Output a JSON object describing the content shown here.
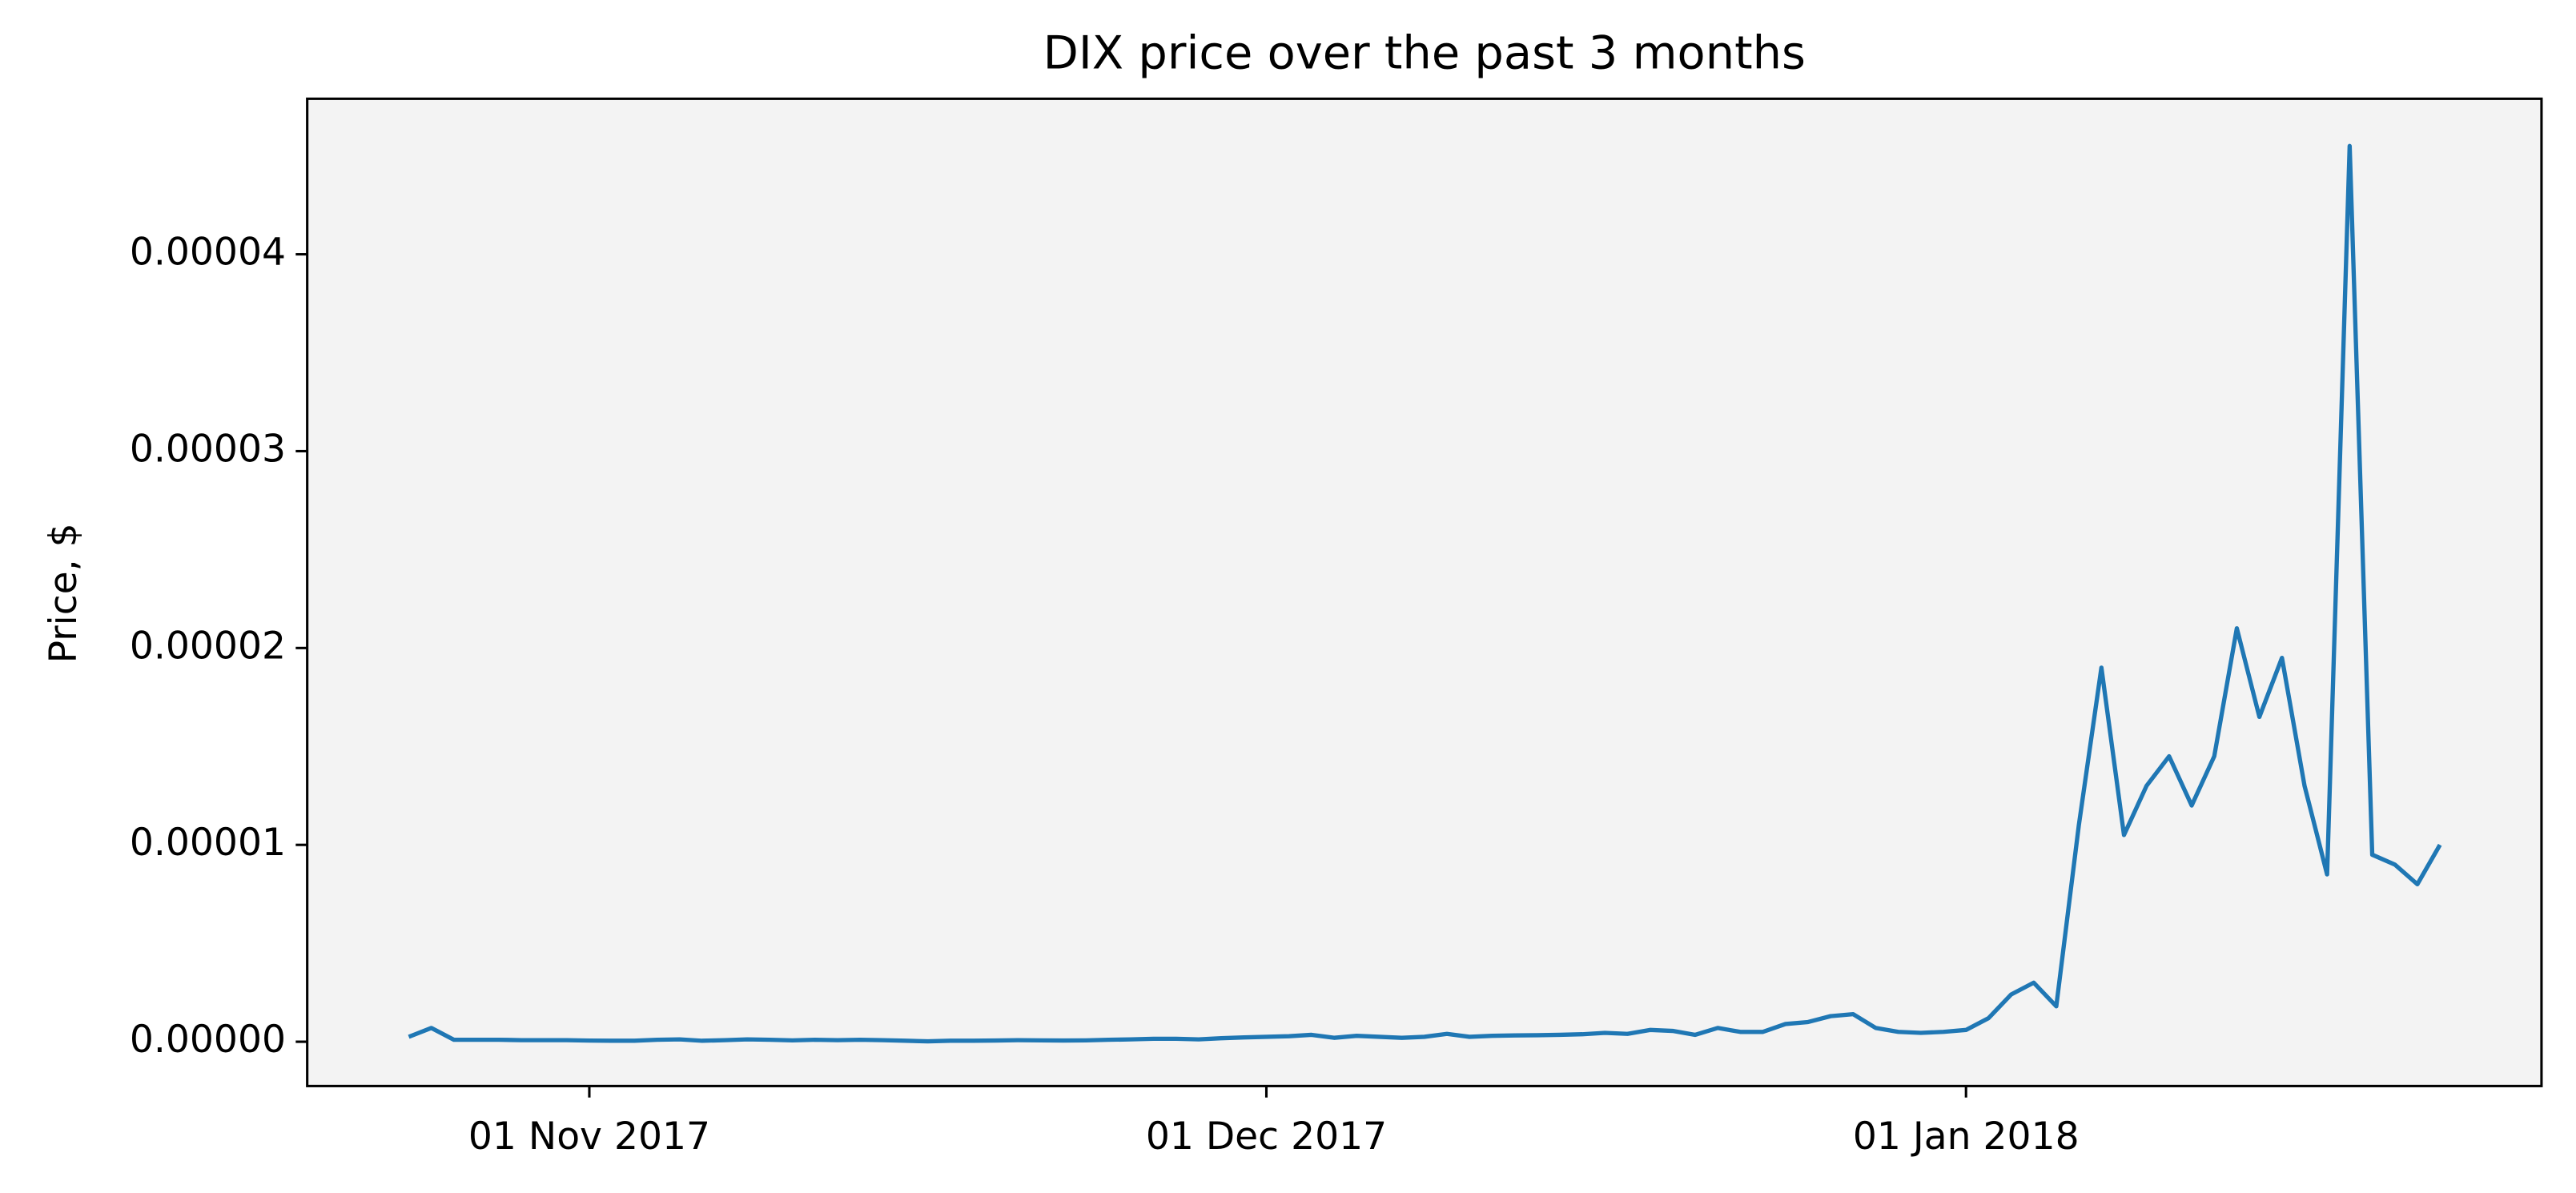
{
  "chart_data": {
    "type": "line",
    "title": "DIX price over the past 3 months",
    "ylabel": "Price, $",
    "x": [
      "2017-10-24",
      "2017-10-25",
      "2017-10-26",
      "2017-10-27",
      "2017-10-28",
      "2017-10-29",
      "2017-10-30",
      "2017-10-31",
      "2017-11-01",
      "2017-11-02",
      "2017-11-03",
      "2017-11-04",
      "2017-11-05",
      "2017-11-06",
      "2017-11-07",
      "2017-11-08",
      "2017-11-09",
      "2017-11-10",
      "2017-11-11",
      "2017-11-12",
      "2017-11-13",
      "2017-11-14",
      "2017-11-15",
      "2017-11-16",
      "2017-11-17",
      "2017-11-18",
      "2017-11-19",
      "2017-11-20",
      "2017-11-21",
      "2017-11-22",
      "2017-11-23",
      "2017-11-24",
      "2017-11-25",
      "2017-11-26",
      "2017-11-27",
      "2017-11-28",
      "2017-11-29",
      "2017-11-30",
      "2017-12-01",
      "2017-12-02",
      "2017-12-03",
      "2017-12-04",
      "2017-12-05",
      "2017-12-06",
      "2017-12-07",
      "2017-12-08",
      "2017-12-09",
      "2017-12-10",
      "2017-12-11",
      "2017-12-12",
      "2017-12-13",
      "2017-12-14",
      "2017-12-15",
      "2017-12-16",
      "2017-12-17",
      "2017-12-18",
      "2017-12-19",
      "2017-12-20",
      "2017-12-21",
      "2017-12-22",
      "2017-12-23",
      "2017-12-24",
      "2017-12-25",
      "2017-12-26",
      "2017-12-27",
      "2017-12-28",
      "2017-12-29",
      "2017-12-30",
      "2017-12-31",
      "2018-01-01",
      "2018-01-02",
      "2018-01-03",
      "2018-01-04",
      "2018-01-05",
      "2018-01-06",
      "2018-01-07",
      "2018-01-08",
      "2018-01-09",
      "2018-01-10",
      "2018-01-11",
      "2018-01-12",
      "2018-01-13",
      "2018-01-14",
      "2018-01-15",
      "2018-01-16",
      "2018-01-17",
      "2018-01-18",
      "2018-01-19",
      "2018-01-20",
      "2018-01-21",
      "2018-01-22"
    ],
    "series": [
      {
        "name": "DIX",
        "color": "#1f77b4",
        "values": [
          2.5e-07,
          7e-07,
          1e-07,
          1e-07,
          1e-07,
          8e-08,
          8e-08,
          8e-08,
          6e-08,
          5e-08,
          5e-08,
          1e-07,
          1.2e-07,
          5e-08,
          8e-08,
          1.2e-07,
          1e-07,
          7e-08,
          1e-07,
          8e-08,
          1e-07,
          8e-08,
          5e-08,
          2e-08,
          5e-08,
          5e-08,
          6e-08,
          8e-08,
          7e-08,
          6e-08,
          7e-08,
          1e-07,
          1.2e-07,
          1.5e-07,
          1.5e-07,
          1.2e-07,
          1.8e-07,
          2.2e-07,
          2.5e-07,
          2.8e-07,
          3.5e-07,
          2e-07,
          3e-07,
          2.5e-07,
          2e-07,
          2.5e-07,
          4e-07,
          2.5e-07,
          3e-07,
          3.2e-07,
          3.3e-07,
          3.5e-07,
          3.8e-07,
          4.5e-07,
          4e-07,
          6e-07,
          5.5e-07,
          3.5e-07,
          7e-07,
          5e-07,
          5e-07,
          9e-07,
          1e-06,
          1.3e-06,
          1.4e-06,
          7e-07,
          5e-07,
          4.5e-07,
          5e-07,
          6e-07,
          1.2e-06,
          2.4e-06,
          3e-06,
          1.8e-06,
          1.1e-05,
          1.9e-05,
          1.05e-05,
          1.3e-05,
          1.45e-05,
          1.2e-05,
          1.45e-05,
          2.1e-05,
          1.65e-05,
          1.95e-05,
          1.3e-05,
          8.5e-06,
          4.55e-05,
          9.5e-06,
          9e-06,
          8e-06,
          1e-05
        ]
      }
    ],
    "xlim": [
      "2017-10-19T12:00:00Z",
      "2018-01-26T12:00:00Z"
    ],
    "xticks": [
      {
        "value": "2017-11-01",
        "label": "01 Nov 2017"
      },
      {
        "value": "2017-12-01",
        "label": "01 Dec 2017"
      },
      {
        "value": "2018-01-01",
        "label": "01 Jan 2018"
      }
    ],
    "ylim": [
      -2.25e-06,
      4.79e-05
    ],
    "yticks": [
      {
        "value": 0,
        "label": "0.00000"
      },
      1e-05,
      2e-05,
      3e-05,
      4e-05
    ],
    "background": "#f3f3f3"
  }
}
